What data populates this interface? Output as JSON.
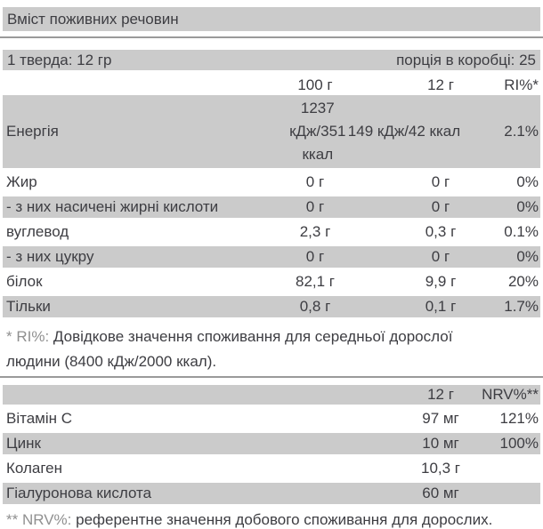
{
  "title": "Вміст поживних речовин",
  "serving_bar": {
    "left": "1 тверда: 12 гр",
    "right": "порція в коробці: 25"
  },
  "table1": {
    "columns": {
      "per100": "100 г",
      "per12": "12 г",
      "ri": "RI%*"
    },
    "rows": [
      {
        "label": "Енергія",
        "v100": "1237 кДж/351 ккал",
        "v12": "149 кДж/42 ккал",
        "ri": "2.1%"
      },
      {
        "label": "Жир",
        "v100": "0 г",
        "v12": "0 г",
        "ri": "0%"
      },
      {
        "label": "- з них насичені жирні кислоти",
        "v100": "0 г",
        "v12": "0 г",
        "ri": "0%"
      },
      {
        "label": "вуглевод",
        "v100": "2,3 г",
        "v12": "0,3 г",
        "ri": "0.1%"
      },
      {
        "label": "- з них цукру",
        "v100": "0 г",
        "v12": "0 г",
        "ri": "0%"
      },
      {
        "label": "білок",
        "v100": "82,1 г",
        "v12": "9,9 г",
        "ri": "20%"
      },
      {
        "label": "Тільки",
        "v100": "0,8 г",
        "v12": "0,1 г",
        "ri": "1.7%"
      }
    ],
    "footnote": {
      "marker": "* RI%:",
      "line1": "Довідкове значення споживання для середньої дорослої",
      "line2": "людини (8400 кДж/2000 ккал)."
    }
  },
  "table2": {
    "columns": {
      "per12": "12 г",
      "nrv": "NRV%**"
    },
    "rows": [
      {
        "label": "Вітамін С",
        "v12": "97 мг",
        "nrv": "121%"
      },
      {
        "label": "Цинк",
        "v12": "10 мг",
        "nrv": "100%"
      },
      {
        "label": "Колаген",
        "v12": "10,3 г",
        "nrv": ""
      },
      {
        "label": "Гіалуронова кислота",
        "v12": "60 мг",
        "nrv": ""
      }
    ],
    "footnote": {
      "marker": "** NRV%:",
      "text": "референтне значення добового споживання для дорослих."
    }
  },
  "colors": {
    "stripe": "#cbcbcb",
    "text": "#3d3d42",
    "muted": "#909090",
    "separator": "#9a9a9a"
  }
}
